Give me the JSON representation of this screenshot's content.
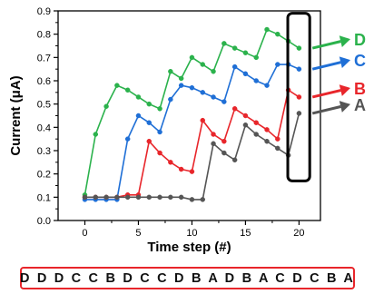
{
  "chart_data": {
    "type": "line",
    "xlabel": "Time step (#)",
    "ylabel": "Current (μA)",
    "xlim": [
      -2.5,
      22
    ],
    "ylim": [
      0,
      0.9
    ],
    "xticks": [
      "0",
      "5",
      "10",
      "15",
      "20"
    ],
    "yticks": [
      "0.0",
      "0.1",
      "0.2",
      "0.3",
      "0.4",
      "0.5",
      "0.6",
      "0.7",
      "0.8",
      "0.9"
    ],
    "grid": false,
    "x": [
      0,
      1,
      2,
      3,
      4,
      5,
      6,
      7,
      8,
      9,
      10,
      11,
      12,
      13,
      14,
      15,
      16,
      17,
      18,
      19,
      20
    ],
    "series": [
      {
        "name": "D",
        "color": "#2bb24c",
        "values": [
          0.11,
          0.37,
          0.49,
          0.58,
          0.56,
          0.53,
          0.5,
          0.48,
          0.64,
          0.61,
          0.7,
          0.67,
          0.64,
          0.76,
          0.74,
          0.72,
          0.7,
          0.82,
          0.8,
          0.77,
          0.74
        ]
      },
      {
        "name": "C",
        "color": "#1f6fd6",
        "values": [
          0.09,
          0.09,
          0.09,
          0.09,
          0.35,
          0.45,
          0.42,
          0.38,
          0.52,
          0.58,
          0.57,
          0.55,
          0.53,
          0.51,
          0.66,
          0.63,
          0.6,
          0.58,
          0.67,
          0.67,
          0.65
        ]
      },
      {
        "name": "B",
        "color": "#e8262b",
        "values": [
          0.1,
          0.1,
          0.1,
          0.1,
          0.11,
          0.11,
          0.34,
          0.29,
          0.25,
          0.22,
          0.21,
          0.43,
          0.37,
          0.34,
          0.48,
          0.45,
          0.42,
          0.39,
          0.35,
          0.56,
          0.53
        ]
      },
      {
        "name": "A",
        "color": "#555555",
        "values": [
          0.1,
          0.1,
          0.1,
          0.1,
          0.1,
          0.1,
          0.1,
          0.1,
          0.1,
          0.1,
          0.09,
          0.09,
          0.33,
          0.29,
          0.26,
          0.41,
          0.37,
          0.34,
          0.31,
          0.28,
          0.46
        ]
      }
    ],
    "highlight_box": {
      "x": [
        18.95,
        21.0
      ],
      "y": [
        0.17,
        0.89
      ],
      "color": "#000000"
    },
    "end_markers": [
      "D",
      "C",
      "B",
      "A"
    ]
  },
  "sequence": "D D D C C B D C C D B A D B A C D C B A"
}
